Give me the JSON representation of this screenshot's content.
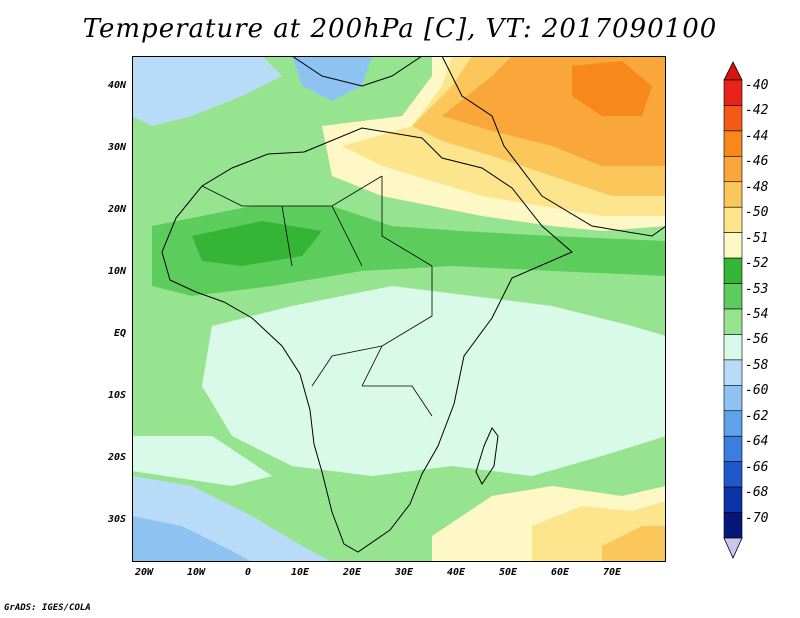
{
  "title": "Temperature at 200hPa [C], VT: 2017090100",
  "footer": "GrADS: IGES/COLA",
  "map": {
    "lat_labels": [
      "40N",
      "30N",
      "20N",
      "10N",
      "EQ",
      "10S",
      "20S",
      "30S"
    ],
    "lon_labels": [
      "20W",
      "10W",
      "0",
      "10E",
      "20E",
      "30E",
      "40E",
      "50E",
      "60E",
      "70E"
    ]
  },
  "colorbar": {
    "labels": [
      "-40",
      "-42",
      "-44",
      "-46",
      "-48",
      "-50",
      "-51",
      "-52",
      "-53",
      "-54",
      "-56",
      "-58",
      "-60",
      "-62",
      "-64",
      "-66",
      "-68",
      "-70"
    ],
    "colors": [
      "#e8231c",
      "#f35a17",
      "#f7891b",
      "#f9a63a",
      "#fbc75a",
      "#fde58e",
      "#fef8c6",
      "#35b535",
      "#5ccd5c",
      "#97e490",
      "#d9fae9",
      "#b8dcf7",
      "#8ec3f1",
      "#5fa3ea",
      "#3a7fdf",
      "#1f58c9",
      "#0c33a8",
      "#06177a"
    ],
    "top_arrow_color": "#d9140f",
    "bottom_arrow_color": "#cfc5f0"
  }
}
